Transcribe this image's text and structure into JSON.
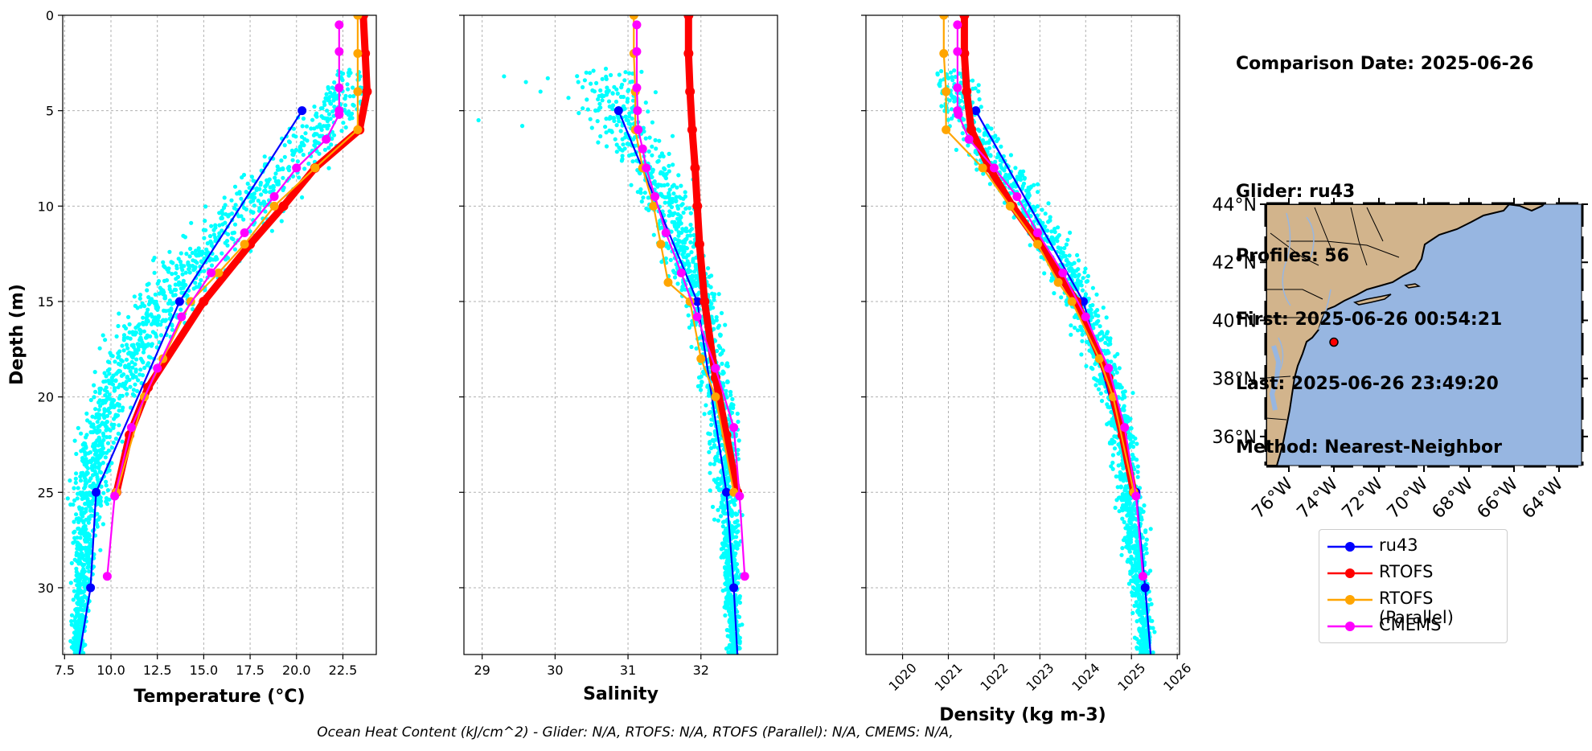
{
  "info": {
    "comparison": "Comparison Date: 2025-06-26",
    "glider": "Glider: ru43",
    "profiles": "Profiles: 56",
    "first": "First: 2025-06-26 00:54:21",
    "last": "Last: 2025-06-26 23:49:20",
    "method": "Method: Nearest-Neighbor"
  },
  "legend": {
    "items": [
      {
        "label": "ru43",
        "color": "#0000ff"
      },
      {
        "label": "RTOFS",
        "color": "#ff0000"
      },
      {
        "label": "RTOFS (Parallel)",
        "color": "#ffa500"
      },
      {
        "label": "CMEMS",
        "color": "#ff00ff"
      }
    ]
  },
  "footer": "Ocean Heat Content (kJ/cm^2) - Glider: N/A,  RTOFS: N/A,  RTOFS (Parallel): N/A,  CMEMS: N/A,",
  "chart_data": [
    {
      "type": "line",
      "xlabel": "Temperature (°C)",
      "ylabel": "Depth (m)",
      "xlim": [
        7.4,
        24.3
      ],
      "ylim": [
        33.5,
        0
      ],
      "inverted_y": true,
      "grid": true,
      "xticks": [
        "7.5",
        "10.0",
        "12.5",
        "15.0",
        "17.5",
        "20.0",
        "22.5"
      ],
      "xtickvals": [
        7.5,
        10,
        12.5,
        15,
        17.5,
        20,
        22.5
      ],
      "yticks": [
        "0",
        "5",
        "10",
        "15",
        "20",
        "25",
        "30"
      ],
      "scatter_color": "#00ffff",
      "series": [
        {
          "name": "ru43",
          "x": [
            20.3,
            13.7,
            9.2,
            8.9,
            8.3
          ],
          "y": [
            5,
            15,
            25,
            30,
            33.5
          ]
        },
        {
          "name": "RTOFS",
          "x": [
            23.6,
            23.7,
            23.8,
            23.4,
            21.0,
            19.3,
            17.5,
            15.0,
            12.0,
            11.0,
            10.3
          ],
          "y": [
            0,
            2,
            4,
            6,
            8,
            10,
            12,
            15,
            19.5,
            22,
            25
          ]
        },
        {
          "name": "RTOFS (Parallel)",
          "x": [
            23.3,
            23.3,
            23.3,
            23.3,
            21.0,
            18.8,
            17.2,
            15.8,
            14.3,
            12.8,
            11.8,
            10.3
          ],
          "y": [
            0,
            2,
            4,
            6,
            8,
            10,
            12,
            13.5,
            15,
            18,
            20,
            25
          ]
        },
        {
          "name": "CMEMS",
          "x": [
            22.3,
            22.3,
            22.3,
            22.3,
            22.3,
            21.6,
            20.0,
            18.8,
            17.2,
            15.4,
            13.8,
            12.5,
            11.1,
            10.2,
            9.8
          ],
          "y": [
            0.5,
            1.9,
            3.8,
            5,
            5.2,
            6.5,
            8,
            9.5,
            11.4,
            13.5,
            15.8,
            18.5,
            21.6,
            25.2,
            29.4
          ]
        }
      ]
    },
    {
      "type": "line",
      "xlabel": "Salinity",
      "xlim": [
        28.75,
        33.05
      ],
      "ylim": [
        33.5,
        0
      ],
      "inverted_y": true,
      "grid": true,
      "xticks": [
        "29",
        "30",
        "31",
        "32"
      ],
      "xtickvals": [
        29,
        30,
        31,
        32
      ],
      "scatter_color": "#00ffff",
      "series": [
        {
          "name": "ru43",
          "x": [
            30.87,
            31.95,
            32.35,
            32.45,
            32.5
          ],
          "y": [
            5,
            15,
            25,
            30,
            33.5
          ]
        },
        {
          "name": "RTOFS",
          "x": [
            31.83,
            31.83,
            31.85,
            31.88,
            31.92,
            31.95,
            31.98,
            32.05,
            32.2,
            32.35,
            32.5
          ],
          "y": [
            0,
            2,
            4,
            6,
            8,
            10,
            12,
            15,
            19,
            22,
            25
          ]
        },
        {
          "name": "RTOFS (Parallel)",
          "x": [
            31.08,
            31.08,
            31.1,
            31.1,
            31.2,
            31.35,
            31.45,
            31.55,
            31.85,
            32.0,
            32.2,
            32.45
          ],
          "y": [
            0,
            2,
            4,
            6,
            8,
            10,
            12,
            14,
            15,
            18,
            20,
            25
          ]
        },
        {
          "name": "CMEMS",
          "x": [
            31.12,
            31.12,
            31.12,
            31.13,
            31.14,
            31.2,
            31.25,
            31.37,
            31.52,
            31.73,
            31.95,
            32.2,
            32.45,
            32.53,
            32.6
          ],
          "y": [
            0.5,
            1.9,
            3.8,
            5,
            6,
            7,
            8,
            9.5,
            11.4,
            13.5,
            15.8,
            18.5,
            21.6,
            25.2,
            29.4
          ]
        }
      ]
    },
    {
      "type": "line",
      "xlabel": "Density (kg m-3)",
      "xlim": [
        1019.2,
        1026.05
      ],
      "ylim": [
        33.5,
        0
      ],
      "inverted_y": true,
      "grid": true,
      "xticks": [
        "1020",
        "1021",
        "1022",
        "1023",
        "1024",
        "1025",
        "1026"
      ],
      "xtickvals": [
        1020,
        1021,
        1022,
        1023,
        1024,
        1025,
        1026
      ],
      "scatter_color": "#00ffff",
      "series": [
        {
          "name": "ru43",
          "x": [
            1021.6,
            1023.95,
            1025.1,
            1025.3,
            1025.42
          ],
          "y": [
            5,
            15,
            25,
            30,
            33.5
          ]
        },
        {
          "name": "RTOFS",
          "x": [
            1021.35,
            1021.35,
            1021.4,
            1021.5,
            1021.9,
            1022.4,
            1023.0,
            1023.8,
            1024.5,
            1024.8,
            1025.05
          ],
          "y": [
            0,
            2,
            4,
            6,
            8,
            10,
            12,
            15,
            19,
            22,
            25
          ]
        },
        {
          "name": "RTOFS (Parallel)",
          "x": [
            1020.9,
            1020.9,
            1020.95,
            1020.95,
            1021.75,
            1022.35,
            1022.95,
            1023.4,
            1023.7,
            1024.3,
            1024.6,
            1025.05
          ],
          "y": [
            0,
            2,
            4,
            6,
            8,
            10,
            12,
            14,
            15,
            18,
            20,
            25
          ]
        },
        {
          "name": "CMEMS",
          "x": [
            1021.2,
            1021.2,
            1021.2,
            1021.2,
            1021.22,
            1021.45,
            1022.0,
            1022.5,
            1022.95,
            1023.5,
            1024.0,
            1024.5,
            1024.85,
            1025.1,
            1025.25
          ],
          "y": [
            0.5,
            1.9,
            3.8,
            5,
            5.2,
            6.5,
            8,
            9.5,
            11.4,
            13.5,
            15.8,
            18.5,
            21.6,
            25.2,
            29.4
          ]
        }
      ]
    }
  ],
  "map": {
    "lat_labels": [
      "44°N",
      "42°N",
      "40°N",
      "38°N",
      "36°N"
    ],
    "lat_vals": [
      44,
      42,
      40,
      38,
      36
    ],
    "lon_labels": [
      "76°W",
      "74°W",
      "72°W",
      "70°W",
      "68°W",
      "66°W",
      "64°W"
    ],
    "lon_vals": [
      -76,
      -74,
      -72,
      -70,
      -68,
      -66,
      -64
    ],
    "extent": {
      "lon": [
        -77,
        -63
      ],
      "lat": [
        35,
        44
      ]
    },
    "glider_position": {
      "lon": -74.0,
      "lat": 39.25
    },
    "ocean_color": "#97b6e1",
    "land_color": "#d2b48c"
  }
}
